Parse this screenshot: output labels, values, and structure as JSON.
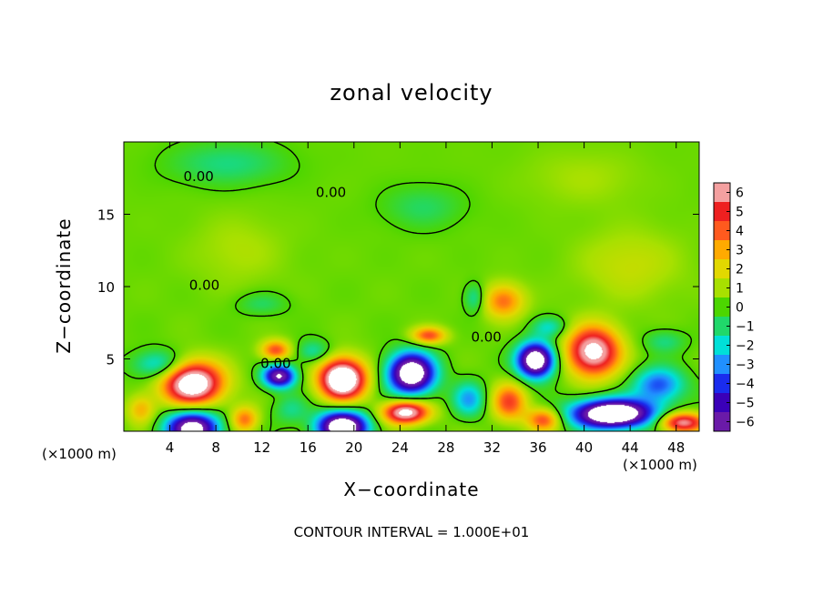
{
  "chart_data": {
    "type": "heatmap",
    "title": "zonal velocity",
    "xlabel": "X−coordinate",
    "ylabel": "Z−coordinate",
    "x_unit_label": "(×1000 m)",
    "footer": "CONTOUR INTERVAL = 1.000E+01",
    "xlim": [
      0,
      50
    ],
    "ylim": [
      0,
      20
    ],
    "x_ticks": [
      4,
      8,
      12,
      16,
      20,
      24,
      28,
      32,
      36,
      40,
      44,
      48
    ],
    "y_ticks": [
      5,
      10,
      15
    ],
    "colorbar": {
      "levels": [
        6,
        5,
        4,
        3,
        2,
        1,
        0,
        -1,
        -2,
        -3,
        -4,
        -5,
        -6
      ],
      "level_labels": [
        "6",
        "5",
        "4",
        "3",
        "2",
        "1",
        "0",
        "−1",
        "−2",
        "−3",
        "−4",
        "−5",
        "−6"
      ],
      "colors": [
        "#f4a0a0",
        "#ee2020",
        "#ff5a1e",
        "#ffaa00",
        "#e2d800",
        "#a8e000",
        "#4cd600",
        "#20d86a",
        "#00e0d8",
        "#2090ff",
        "#1a2cee",
        "#3a00b8",
        "#6a1aa8"
      ]
    },
    "contour_label_text": "0.00",
    "contour_labels": [
      {
        "x": 6.5,
        "y": 17.6
      },
      {
        "x": 18,
        "y": 16.5
      },
      {
        "x": 7,
        "y": 10.1
      },
      {
        "x": 13.2,
        "y": 4.7
      },
      {
        "x": 31.5,
        "y": 6.5
      }
    ],
    "background_value": 0.3,
    "features": [
      {
        "x": 6,
        "y": 3.3,
        "amp": 8,
        "sx": 2.6,
        "sy": 1.5
      },
      {
        "x": 6,
        "y": 0.2,
        "amp": -8,
        "sx": 2.3,
        "sy": 1.2
      },
      {
        "x": 3,
        "y": 4.6,
        "amp": -2.8,
        "sx": 2.2,
        "sy": 1.0
      },
      {
        "x": 1.5,
        "y": 1.5,
        "amp": 2.5,
        "sx": 1.2,
        "sy": 1.0
      },
      {
        "x": 10.5,
        "y": 0.8,
        "amp": 3.5,
        "sx": 1.2,
        "sy": 0.9
      },
      {
        "x": 13.5,
        "y": 3.8,
        "amp": -7,
        "sx": 1.4,
        "sy": 0.8
      },
      {
        "x": 13.2,
        "y": 5.6,
        "amp": 4,
        "sx": 1.3,
        "sy": 0.7
      },
      {
        "x": 14.5,
        "y": 1.5,
        "amp": -1.5,
        "sx": 1.5,
        "sy": 1.0
      },
      {
        "x": 19,
        "y": 3.6,
        "amp": 9,
        "sx": 2.0,
        "sy": 1.4
      },
      {
        "x": 19,
        "y": 0.3,
        "amp": -9,
        "sx": 2.2,
        "sy": 1.1
      },
      {
        "x": 16.5,
        "y": 5.5,
        "amp": -2,
        "sx": 1.5,
        "sy": 0.8
      },
      {
        "x": 25,
        "y": 4.0,
        "amp": -9,
        "sx": 2.0,
        "sy": 1.4
      },
      {
        "x": 24.5,
        "y": 1.3,
        "amp": 7,
        "sx": 2.0,
        "sy": 0.8
      },
      {
        "x": 26.5,
        "y": 6.6,
        "amp": 4,
        "sx": 1.5,
        "sy": 0.6
      },
      {
        "x": 30,
        "y": 2.2,
        "amp": -3,
        "sx": 1.4,
        "sy": 1.2
      },
      {
        "x": 33.5,
        "y": 2.0,
        "amp": 4,
        "sx": 1.5,
        "sy": 1.3
      },
      {
        "x": 30.5,
        "y": 9.2,
        "amp": -2,
        "sx": 0.9,
        "sy": 1.0
      },
      {
        "x": 33,
        "y": 9.0,
        "amp": 3.5,
        "sx": 1.8,
        "sy": 1.2
      },
      {
        "x": 35.8,
        "y": 4.9,
        "amp": -9,
        "sx": 1.6,
        "sy": 1.2
      },
      {
        "x": 36.5,
        "y": 0.8,
        "amp": 4,
        "sx": 1.5,
        "sy": 0.8
      },
      {
        "x": 40.8,
        "y": 5.5,
        "amp": 7,
        "sx": 2.3,
        "sy": 1.7
      },
      {
        "x": 42.5,
        "y": 1.2,
        "amp": -10,
        "sx": 3.5,
        "sy": 1.0
      },
      {
        "x": 46.5,
        "y": 3.2,
        "amp": -4,
        "sx": 2.2,
        "sy": 1.2
      },
      {
        "x": 48.5,
        "y": 0.6,
        "amp": 6,
        "sx": 2.0,
        "sy": 0.7
      },
      {
        "x": 47,
        "y": 6.2,
        "amp": -1.5,
        "sx": 1.8,
        "sy": 0.8
      },
      {
        "x": 37,
        "y": 7.2,
        "amp": -2,
        "sx": 1.5,
        "sy": 0.7
      },
      {
        "x": 12,
        "y": 8.8,
        "amp": -1.2,
        "sx": 2.2,
        "sy": 0.8
      },
      {
        "x": 9,
        "y": 18.5,
        "amp": -1.5,
        "sx": 5.0,
        "sy": 1.5
      },
      {
        "x": 26,
        "y": 15.5,
        "amp": -1.2,
        "sx": 3.5,
        "sy": 1.5
      },
      {
        "x": 44,
        "y": 11.5,
        "amp": 1.2,
        "sx": 4.5,
        "sy": 2.5
      },
      {
        "x": 10,
        "y": 12.5,
        "amp": 0.8,
        "sx": 4.0,
        "sy": 2.5
      },
      {
        "x": 40,
        "y": 17.5,
        "amp": 0.7,
        "sx": 5.0,
        "sy": 2.0
      }
    ]
  }
}
